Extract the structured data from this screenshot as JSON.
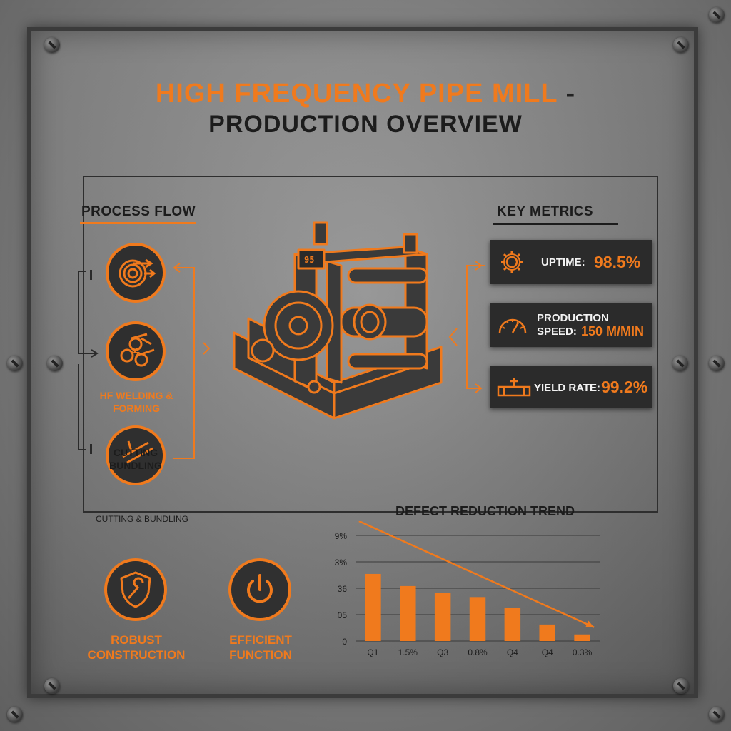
{
  "title": {
    "line1": "HIGH FREQUENCY PIPE MILL",
    "dash": "-",
    "line2": "PRODUCTION OVERVIEW"
  },
  "process_flow": {
    "heading": "PROCESS FLOW",
    "steps": [
      {
        "icon": "coil-icon",
        "label": ""
      },
      {
        "icon": "pipes-icon",
        "label": "HF WELDING & FORMING"
      },
      {
        "icon": "cutting-icon",
        "label": "CUTTING BUNDLING"
      }
    ],
    "footnote": "CUTTING & BUNDLING"
  },
  "machine": {
    "icon": "pipe-mill-machine-icon",
    "plate_text": "95"
  },
  "key_metrics": {
    "heading": "KEY METRICS",
    "items": [
      {
        "icon": "gear-icon",
        "label": "UPTIME:",
        "value": "98.5%"
      },
      {
        "icon": "gauge-icon",
        "label_line1": "PRODUCTION",
        "label_line2": "SPEED:",
        "value": "150 M/MIN"
      },
      {
        "icon": "pipe-valve-icon",
        "label": "YIELD RATE:",
        "value": "99.2%"
      }
    ]
  },
  "features": [
    {
      "icon": "shield-wrench-icon",
      "line1": "ROBUST",
      "line2": "CONSTRUCTION"
    },
    {
      "icon": "power-icon",
      "line1": "EFFICIENT",
      "line2": "FUNCTION"
    }
  ],
  "colors": {
    "accent": "#f07a1d",
    "dark": "#2b2b2b",
    "plate": "#808080"
  },
  "chart_data": {
    "type": "bar",
    "title": "DEFECT REDUCTION TREND",
    "y_tick_labels": [
      "0",
      "05",
      "36",
      "3%",
      "9%"
    ],
    "x_tick_labels": [
      "Q1",
      "1.5%",
      "Q3",
      "0.8%",
      "Q4",
      "Q4",
      "0.3%"
    ],
    "values": [
      3.05,
      2.5,
      2.2,
      2.0,
      1.5,
      0.75,
      0.3
    ],
    "ylim": [
      0,
      4.8
    ],
    "grid": true,
    "trend_arrow": true
  }
}
